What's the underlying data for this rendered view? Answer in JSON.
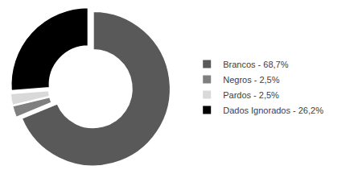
{
  "chart_data": {
    "type": "pie",
    "categories": [
      "Brancos - 68,7%",
      "Negros - 2,5%",
      "Pardos - 2,5%",
      "Dados Ignorados - 26,2%"
    ],
    "values": [
      68.7,
      2.5,
      2.5,
      26.2
    ],
    "colors": [
      "#595959",
      "#7f7f7f",
      "#d9d9d9",
      "#000000"
    ],
    "legend": "right"
  }
}
